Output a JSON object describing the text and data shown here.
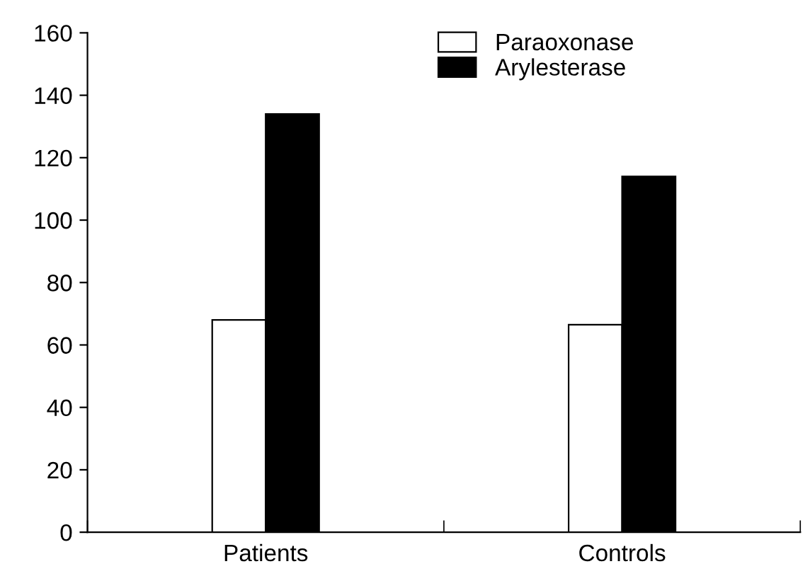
{
  "chart_data": {
    "type": "bar",
    "categories": [
      "Patients",
      "Controls"
    ],
    "series": [
      {
        "name": "Paraoxonase",
        "color": "#ffffff",
        "values": [
          68,
          66.5
        ]
      },
      {
        "name": "Arylesterase",
        "color": "#000000",
        "values": [
          134,
          114
        ]
      }
    ],
    "ylim": [
      0,
      160
    ],
    "yticks": [
      0,
      20,
      40,
      60,
      80,
      100,
      120,
      140,
      160
    ],
    "grid": false,
    "legend": "top right"
  }
}
